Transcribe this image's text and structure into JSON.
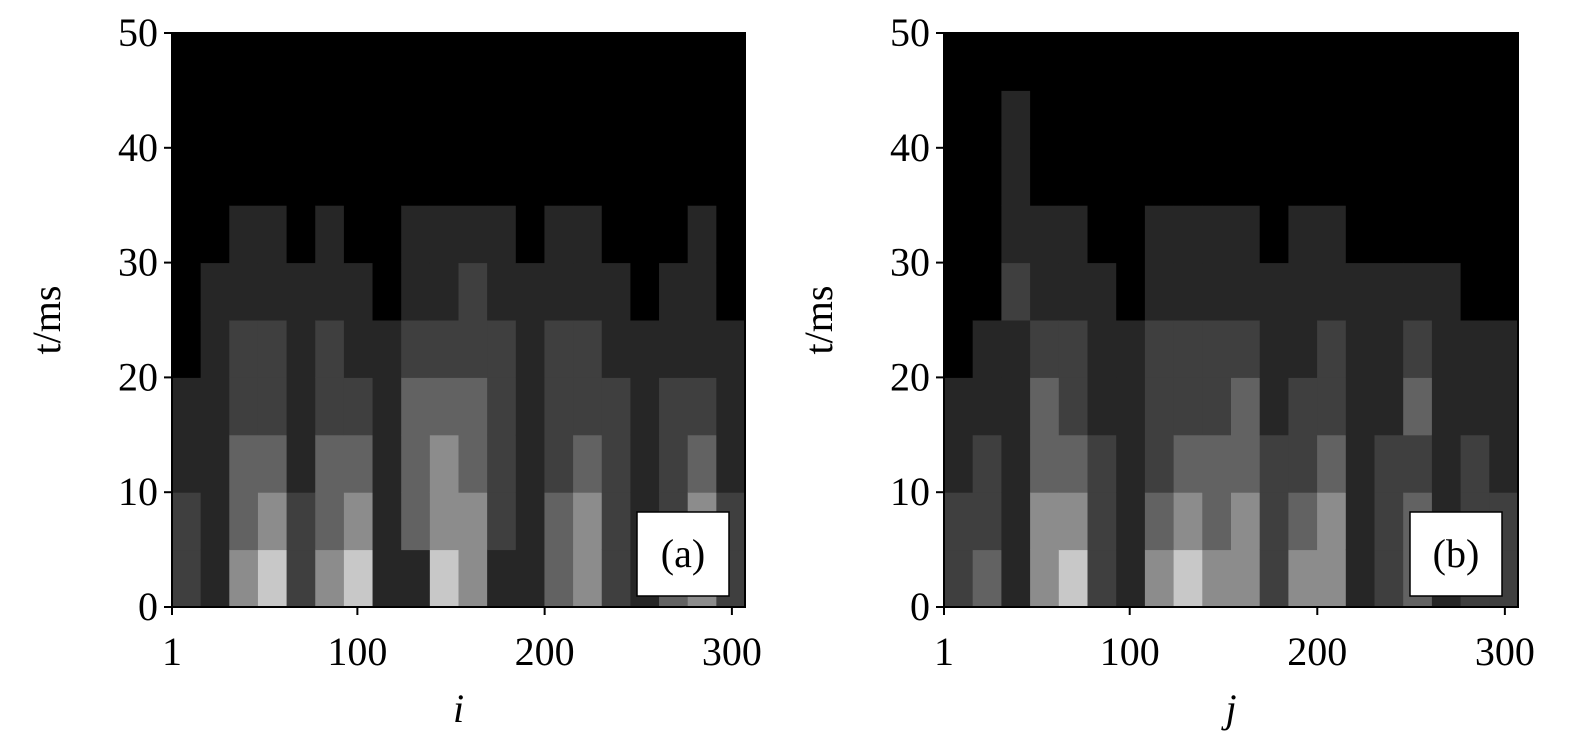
{
  "chart_data": [
    {
      "type": "heatmap",
      "annotation": "(a)",
      "xlabel": "i",
      "ylabel": "t/ms",
      "xlim": [
        1,
        307
      ],
      "ylim": [
        0,
        50
      ],
      "xticks": [
        1,
        100,
        200,
        300
      ],
      "yticks": [
        0,
        10,
        20,
        30,
        40,
        50
      ],
      "colorscale": [
        "#000000",
        "#262626",
        "#3f3f3f",
        "#626262",
        "#8c8c8c",
        "#c8c8c8"
      ],
      "xbins": [
        1,
        16.3,
        31.6,
        46.9,
        62.2,
        77.5,
        92.8,
        108.1,
        123.4,
        138.7,
        154,
        169.3,
        184.6,
        199.9,
        215.2,
        230.5,
        245.8,
        261.1,
        276.4,
        291.7,
        307
      ],
      "ybins": [
        0,
        5,
        10,
        15,
        20,
        25,
        30,
        35,
        40,
        45,
        50
      ],
      "z": [
        [
          2,
          2,
          1,
          1,
          0,
          0,
          0,
          0,
          0,
          0
        ],
        [
          1,
          1,
          1,
          1,
          1,
          1,
          0,
          0,
          0,
          0
        ],
        [
          4,
          3,
          3,
          2,
          2,
          1,
          1,
          0,
          0,
          0
        ],
        [
          5,
          4,
          3,
          2,
          2,
          1,
          1,
          0,
          0,
          0
        ],
        [
          2,
          2,
          1,
          1,
          1,
          1,
          0,
          0,
          0,
          0
        ],
        [
          4,
          3,
          3,
          2,
          2,
          1,
          1,
          0,
          0,
          0
        ],
        [
          5,
          4,
          3,
          2,
          1,
          1,
          0,
          0,
          0,
          0
        ],
        [
          1,
          1,
          1,
          1,
          1,
          0,
          0,
          0,
          0,
          0
        ],
        [
          1,
          3,
          3,
          3,
          2,
          1,
          1,
          0,
          0,
          0
        ],
        [
          5,
          4,
          4,
          3,
          2,
          1,
          1,
          0,
          0,
          0
        ],
        [
          4,
          4,
          3,
          3,
          2,
          2,
          1,
          0,
          0,
          0
        ],
        [
          1,
          2,
          2,
          2,
          2,
          1,
          1,
          0,
          0,
          0
        ],
        [
          1,
          1,
          1,
          1,
          1,
          1,
          0,
          0,
          0,
          0
        ],
        [
          3,
          3,
          2,
          2,
          2,
          1,
          1,
          0,
          0,
          0
        ],
        [
          4,
          4,
          3,
          2,
          2,
          1,
          1,
          0,
          0,
          0
        ],
        [
          2,
          2,
          2,
          2,
          1,
          1,
          0,
          0,
          0,
          0
        ],
        [
          1,
          1,
          1,
          1,
          1,
          0,
          0,
          0,
          0,
          0
        ],
        [
          3,
          2,
          2,
          2,
          1,
          1,
          0,
          0,
          0,
          0
        ],
        [
          4,
          4,
          3,
          2,
          1,
          1,
          1,
          0,
          0,
          0
        ],
        [
          2,
          2,
          1,
          1,
          1,
          0,
          0,
          0,
          0,
          0
        ]
      ]
    },
    {
      "type": "heatmap",
      "annotation": "(b)",
      "xlabel": "j",
      "ylabel": "t/ms",
      "xlim": [
        1,
        307
      ],
      "ylim": [
        0,
        50
      ],
      "xticks": [
        1,
        100,
        200,
        300
      ],
      "yticks": [
        0,
        10,
        20,
        30,
        40,
        50
      ],
      "colorscale": [
        "#000000",
        "#262626",
        "#3f3f3f",
        "#626262",
        "#8c8c8c",
        "#c8c8c8"
      ],
      "xbins": [
        1,
        16.3,
        31.6,
        46.9,
        62.2,
        77.5,
        92.8,
        108.1,
        123.4,
        138.7,
        154,
        169.3,
        184.6,
        199.9,
        215.2,
        230.5,
        245.8,
        261.1,
        276.4,
        291.7,
        307
      ],
      "ybins": [
        0,
        5,
        10,
        15,
        20,
        25,
        30,
        35,
        40,
        45,
        50
      ],
      "z": [
        [
          2,
          2,
          1,
          1,
          0,
          0,
          0,
          0,
          0,
          0
        ],
        [
          3,
          2,
          2,
          1,
          1,
          0,
          0,
          0,
          0,
          0
        ],
        [
          1,
          1,
          1,
          1,
          1,
          2,
          1,
          1,
          1,
          0
        ],
        [
          4,
          4,
          3,
          3,
          2,
          1,
          1,
          0,
          0,
          0
        ],
        [
          5,
          4,
          3,
          2,
          2,
          1,
          1,
          0,
          0,
          0
        ],
        [
          2,
          2,
          2,
          1,
          1,
          1,
          0,
          0,
          0,
          0
        ],
        [
          1,
          1,
          1,
          1,
          1,
          0,
          0,
          0,
          0,
          0
        ],
        [
          4,
          3,
          2,
          2,
          2,
          1,
          1,
          0,
          0,
          0
        ],
        [
          5,
          4,
          3,
          2,
          2,
          1,
          1,
          0,
          0,
          0
        ],
        [
          4,
          3,
          3,
          2,
          2,
          1,
          1,
          0,
          0,
          0
        ],
        [
          4,
          4,
          3,
          3,
          2,
          1,
          1,
          0,
          0,
          0
        ],
        [
          2,
          2,
          2,
          1,
          1,
          1,
          0,
          0,
          0,
          0
        ],
        [
          4,
          3,
          2,
          2,
          1,
          1,
          1,
          0,
          0,
          0
        ],
        [
          4,
          4,
          3,
          2,
          2,
          1,
          1,
          0,
          0,
          0
        ],
        [
          1,
          1,
          1,
          1,
          1,
          1,
          0,
          0,
          0,
          0
        ],
        [
          2,
          2,
          2,
          1,
          1,
          1,
          0,
          0,
          0,
          0
        ],
        [
          3,
          3,
          2,
          3,
          2,
          1,
          0,
          0,
          0,
          0
        ],
        [
          1,
          1,
          1,
          1,
          1,
          1,
          0,
          0,
          0,
          0
        ],
        [
          2,
          2,
          2,
          1,
          1,
          0,
          0,
          0,
          0,
          0
        ],
        [
          2,
          2,
          1,
          1,
          1,
          0,
          0,
          0,
          0,
          0
        ]
      ]
    }
  ]
}
